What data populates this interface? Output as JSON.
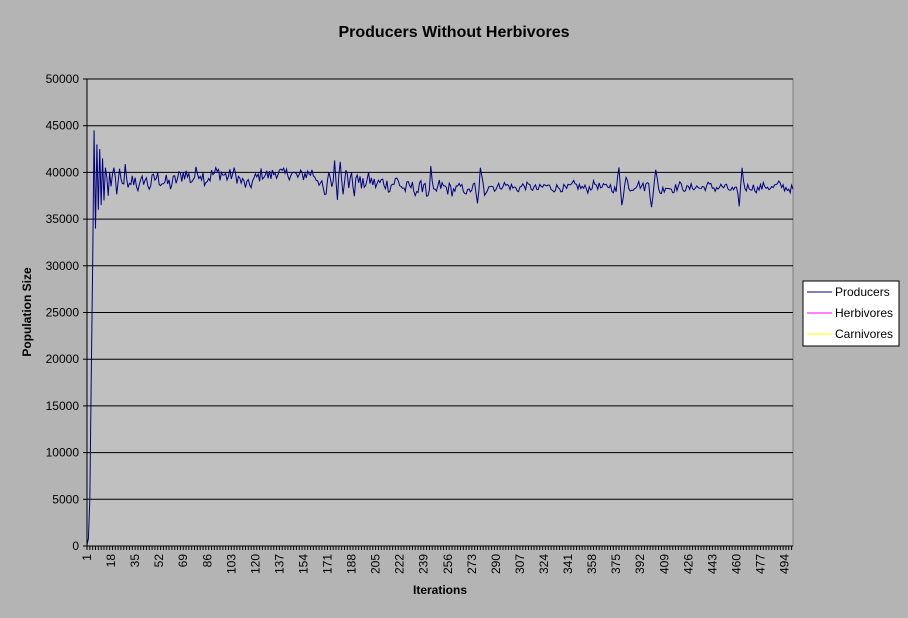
{
  "chart_data": {
    "type": "line",
    "title": "Producers Without Herbivores",
    "xlabel": "Iterations",
    "ylabel": "Population Size",
    "ylim": [
      0,
      50000
    ],
    "y_ticks": [
      0,
      5000,
      10000,
      15000,
      20000,
      25000,
      30000,
      35000,
      40000,
      45000,
      50000
    ],
    "x_range": [
      1,
      500
    ],
    "x_tick_labels": [
      "1",
      "18",
      "35",
      "52",
      "69",
      "86",
      "103",
      "120",
      "137",
      "154",
      "171",
      "188",
      "205",
      "222",
      "239",
      "256",
      "273",
      "290",
      "307",
      "324",
      "341",
      "358",
      "375",
      "392",
      "409",
      "426",
      "443",
      "460",
      "477",
      "494"
    ],
    "grid": "horizontal",
    "legend_position": "right",
    "colors": {
      "plot_background": "#c0c0c0",
      "page_background": "#b4b4b4",
      "legend_background": "#ffffff"
    },
    "series": [
      {
        "name": "Producers",
        "color": "#000080",
        "x": [
          1,
          2,
          3,
          4,
          5,
          6,
          7,
          8,
          9,
          10,
          11,
          12,
          13,
          14,
          15,
          16,
          17,
          18,
          19,
          20,
          22,
          24,
          26,
          28,
          30,
          32,
          35,
          38,
          41,
          45,
          50,
          55,
          60,
          65,
          70,
          75,
          80,
          85,
          90,
          95,
          100,
          105,
          110,
          115,
          120,
          125,
          130,
          135,
          140,
          145,
          150,
          155,
          160,
          165,
          170,
          172,
          174,
          176,
          178,
          180,
          182,
          184,
          186,
          188,
          190,
          192,
          195,
          200,
          205,
          210,
          215,
          220,
          225,
          230,
          235,
          240,
          242,
          244,
          246,
          250,
          255,
          260,
          265,
          270,
          275,
          277,
          279,
          282,
          285,
          290,
          295,
          300,
          305,
          310,
          315,
          320,
          325,
          330,
          335,
          340,
          345,
          350,
          355,
          360,
          365,
          370,
          375,
          377,
          379,
          382,
          385,
          390,
          395,
          398,
          400,
          403,
          406,
          410,
          415,
          420,
          425,
          430,
          435,
          440,
          445,
          450,
          455,
          460,
          462,
          464,
          466,
          470,
          475,
          480,
          485,
          490,
          495,
          500
        ],
        "values": [
          100,
          800,
          5000,
          18000,
          30000,
          44500,
          34000,
          43000,
          36000,
          42500,
          36500,
          41500,
          37000,
          40500,
          39500,
          37500,
          40000,
          38500,
          39800,
          40500,
          38000,
          39500,
          38500,
          40200,
          37800,
          39000,
          39300,
          38200,
          39400,
          38600,
          39500,
          39000,
          38700,
          39300,
          40000,
          39200,
          40200,
          39300,
          39800,
          40000,
          39500,
          39900,
          39000,
          38500,
          39300,
          39900,
          39600,
          40100,
          39700,
          40000,
          39500,
          39800,
          40000,
          39200,
          37200,
          40300,
          38500,
          40700,
          37800,
          41300,
          38200,
          40800,
          38000,
          40200,
          37500,
          40000,
          38500,
          39300,
          38700,
          39000,
          38500,
          39200,
          38200,
          38500,
          38000,
          39000,
          36900,
          40000,
          37500,
          38600,
          38300,
          38100,
          38500,
          37800,
          38600,
          36500,
          40200,
          37800,
          38700,
          38300,
          38700,
          38500,
          38200,
          38600,
          38400,
          38200,
          38600,
          38300,
          38400,
          38200,
          38700,
          38400,
          38200,
          38800,
          38300,
          38600,
          38000,
          40400,
          36800,
          39400,
          38200,
          38800,
          38400,
          38900,
          36600,
          40000,
          37800,
          38500,
          38200,
          38600,
          38200,
          38500,
          38300,
          38600,
          38300,
          38500,
          38200,
          38000,
          36700,
          40300,
          38300,
          38500,
          38200,
          38600,
          38300,
          38700,
          38300,
          38200
        ]
      },
      {
        "name": "Herbivores",
        "color": "#ff00ff",
        "x": [],
        "values": []
      },
      {
        "name": "Carnivores",
        "color": "#ffff00",
        "x": [],
        "values": []
      }
    ]
  }
}
